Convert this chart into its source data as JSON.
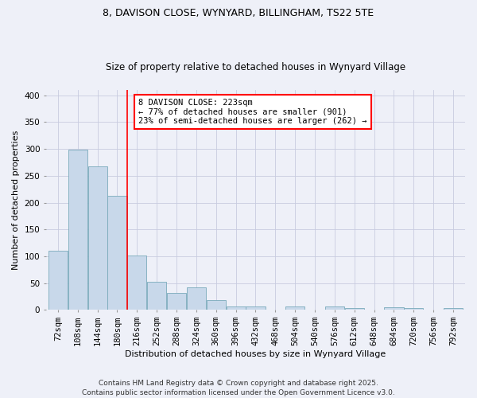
{
  "title_line1": "8, DAVISON CLOSE, WYNYARD, BILLINGHAM, TS22 5TE",
  "title_line2": "Size of property relative to detached houses in Wynyard Village",
  "xlabel": "Distribution of detached houses by size in Wynyard Village",
  "ylabel": "Number of detached properties",
  "footer": "Contains HM Land Registry data © Crown copyright and database right 2025.\nContains public sector information licensed under the Open Government Licence v3.0.",
  "annotation_line1": "8 DAVISON CLOSE: 223sqm",
  "annotation_line2": "← 77% of detached houses are smaller (901)",
  "annotation_line3": "23% of semi-detached houses are larger (262) →",
  "bar_values": [
    110,
    298,
    268,
    213,
    101,
    52,
    31,
    42,
    18,
    7,
    7,
    0,
    7,
    0,
    6,
    4,
    0,
    5,
    4,
    0,
    4
  ],
  "categories": [
    "72sqm",
    "108sqm",
    "144sqm",
    "180sqm",
    "216sqm",
    "252sqm",
    "288sqm",
    "324sqm",
    "360sqm",
    "396sqm",
    "432sqm",
    "468sqm",
    "504sqm",
    "540sqm",
    "576sqm",
    "612sqm",
    "648sqm",
    "684sqm",
    "720sqm",
    "756sqm",
    "792sqm"
  ],
  "bar_color": "#c8d8ea",
  "bar_edge_color": "#7aaabb",
  "vline_color": "red",
  "ylim": [
    0,
    410
  ],
  "yticks": [
    0,
    50,
    100,
    150,
    200,
    250,
    300,
    350,
    400
  ],
  "grid_color": "#c8cce0",
  "bg_color": "#eef0f8",
  "title1_fontsize": 9,
  "title2_fontsize": 8.5,
  "xlabel_fontsize": 8,
  "ylabel_fontsize": 8,
  "tick_fontsize": 7.5,
  "footer_fontsize": 6.5,
  "ann_fontsize": 7.5
}
